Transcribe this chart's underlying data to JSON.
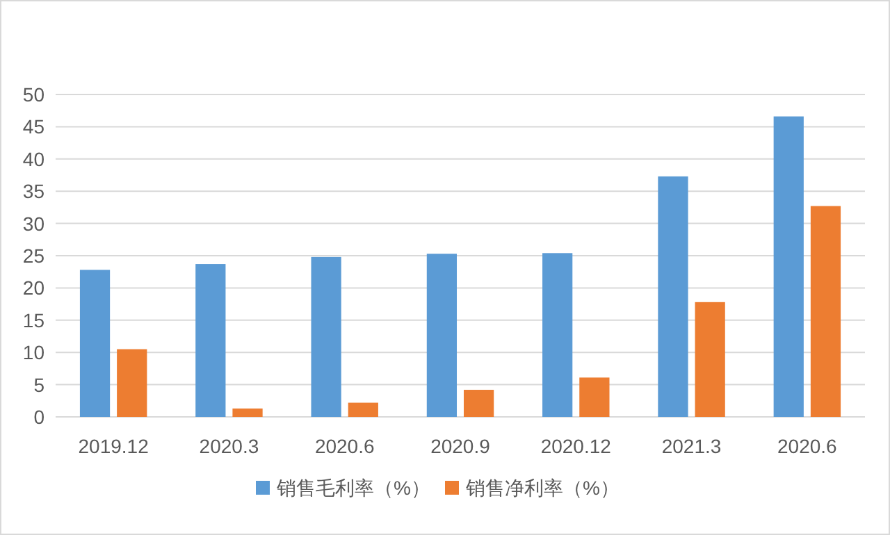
{
  "chart_data": {
    "type": "bar",
    "categories": [
      "2019.12",
      "2020.3",
      "2020.6",
      "2020.9",
      "2020.12",
      "2021.3",
      "2020.6"
    ],
    "series": [
      {
        "name": "销售毛利率（%）",
        "color": "#5b9bd5",
        "values": [
          22.8,
          23.7,
          24.8,
          25.3,
          25.4,
          37.3,
          46.6
        ]
      },
      {
        "name": "销售净利率（%）",
        "color": "#ed7d31",
        "values": [
          10.5,
          1.3,
          2.2,
          4.2,
          6.1,
          17.8,
          32.7
        ]
      }
    ],
    "ylim": [
      0,
      50
    ],
    "yticks": [
      0,
      5,
      10,
      15,
      20,
      25,
      30,
      35,
      40,
      45,
      50
    ],
    "grid": "y",
    "legend": "bottom"
  }
}
